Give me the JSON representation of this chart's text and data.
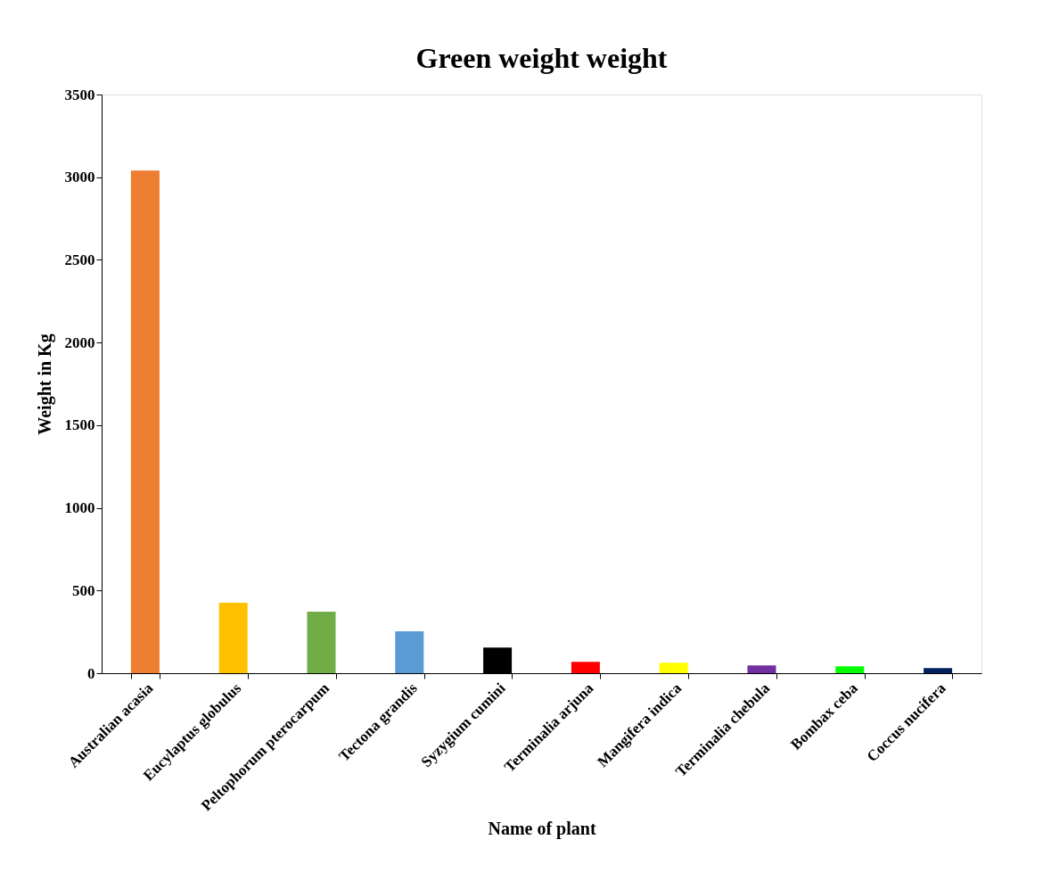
{
  "chart_data": {
    "type": "bar",
    "title": "Green weight weight",
    "xlabel": "Name of plant",
    "ylabel": "Weight in Kg",
    "categories": [
      "Australian acasia",
      "Eucylaptus globulus",
      "Peltophorum pterocarpum",
      "Tectona grandis",
      "Syzygium cumini",
      "Terminalia arjuna",
      "Mangifera indica",
      "Terminalia chebula",
      "Bombax ceba",
      "Coccus nucifera"
    ],
    "values": [
      3040,
      426,
      372,
      253,
      155,
      69,
      63,
      47,
      42,
      31
    ],
    "colors": [
      "#ed7d31",
      "#ffc000",
      "#70ad47",
      "#5b9bd5",
      "#000000",
      "#ff0000",
      "#ffff00",
      "#7030a0",
      "#00ff00",
      "#002060"
    ],
    "ylim": [
      0,
      3500
    ],
    "yticks": [
      0,
      500,
      1000,
      1500,
      2000,
      2500,
      3000,
      3500
    ],
    "grid": false,
    "legend": false
  }
}
